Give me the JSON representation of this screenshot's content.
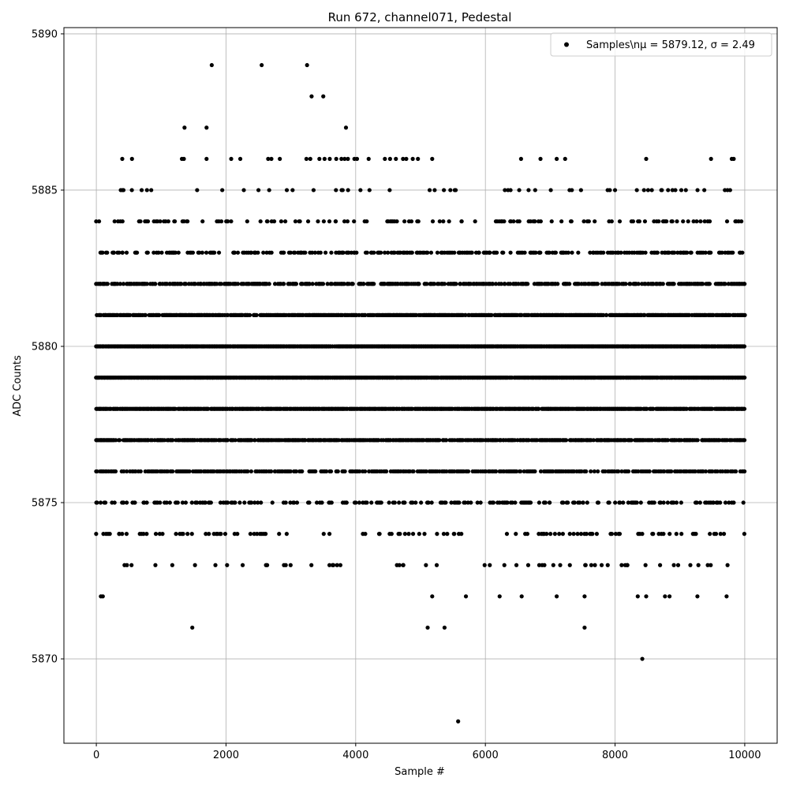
{
  "chart_data": {
    "type": "scatter",
    "title": "Run 672, channel071, Pedestal",
    "xlabel": "Sample #",
    "ylabel": "ADC Counts",
    "xlim": [
      -500,
      10500
    ],
    "ylim": [
      5867.3,
      5890.2
    ],
    "xticks": [
      0,
      2000,
      4000,
      6000,
      8000,
      10000
    ],
    "yticks": [
      5870,
      5875,
      5880,
      5885,
      5890
    ],
    "grid": true,
    "legend": {
      "placement": "top-right",
      "entries": [
        {
          "label": "Samples\\nμ = 5879.12, σ = 2.49",
          "marker": "circle",
          "color": "#000000"
        }
      ]
    },
    "series": [
      {
        "marker_color": "#000000",
        "mean": 5879.12,
        "sigma": 2.49,
        "n_samples": 10000,
        "dense_levels": [
          5873,
          5874,
          5875,
          5876,
          5877,
          5878,
          5879,
          5880,
          5881,
          5882,
          5883,
          5884,
          5885
        ],
        "sparse_points": [
          [
            1780,
            5889
          ],
          [
            2550,
            5889
          ],
          [
            3250,
            5889
          ],
          [
            3320,
            5888
          ],
          [
            3500,
            5888
          ],
          [
            1360,
            5887
          ],
          [
            1700,
            5887
          ],
          [
            3850,
            5887
          ],
          [
            400,
            5886
          ],
          [
            550,
            5886
          ],
          [
            1320,
            5886
          ],
          [
            1350,
            5886
          ],
          [
            1700,
            5886
          ],
          [
            2080,
            5886
          ],
          [
            2220,
            5886
          ],
          [
            2650,
            5886
          ],
          [
            2700,
            5886
          ],
          [
            2830,
            5886
          ],
          [
            3240,
            5886
          ],
          [
            3300,
            5886
          ],
          [
            3440,
            5886
          ],
          [
            3520,
            5886
          ],
          [
            3600,
            5886
          ],
          [
            3700,
            5886
          ],
          [
            3780,
            5886
          ],
          [
            3830,
            5886
          ],
          [
            3880,
            5886
          ],
          [
            3980,
            5886
          ],
          [
            4020,
            5886
          ],
          [
            4200,
            5886
          ],
          [
            4450,
            5886
          ],
          [
            4530,
            5886
          ],
          [
            4620,
            5886
          ],
          [
            4730,
            5886
          ],
          [
            4780,
            5886
          ],
          [
            4880,
            5886
          ],
          [
            4960,
            5886
          ],
          [
            5180,
            5886
          ],
          [
            6550,
            5886
          ],
          [
            6850,
            5886
          ],
          [
            7100,
            5886
          ],
          [
            7230,
            5886
          ],
          [
            8480,
            5886
          ],
          [
            9480,
            5886
          ],
          [
            9800,
            5886
          ],
          [
            9830,
            5886
          ],
          [
            70,
            5872
          ],
          [
            100,
            5872
          ],
          [
            5180,
            5872
          ],
          [
            5700,
            5872
          ],
          [
            6220,
            5872
          ],
          [
            6560,
            5872
          ],
          [
            7100,
            5872
          ],
          [
            7530,
            5872
          ],
          [
            8350,
            5872
          ],
          [
            8480,
            5872
          ],
          [
            8770,
            5872
          ],
          [
            8840,
            5872
          ],
          [
            9270,
            5872
          ],
          [
            9720,
            5872
          ],
          [
            1480,
            5871
          ],
          [
            5110,
            5871
          ],
          [
            5370,
            5871
          ],
          [
            7530,
            5871
          ],
          [
            8420,
            5870
          ],
          [
            5580,
            5868
          ]
        ]
      }
    ]
  }
}
